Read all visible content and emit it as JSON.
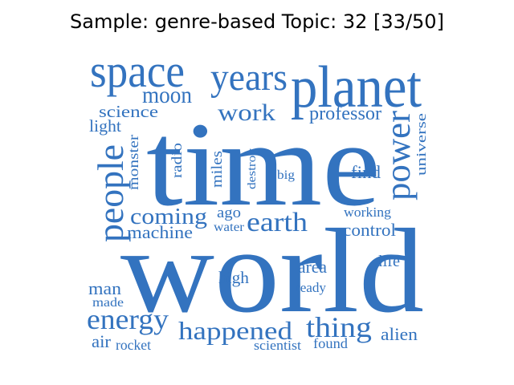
{
  "title": "Sample: genre-based Topic: 32 [33/50]",
  "word_color": "#3373bf",
  "words": [
    {
      "id": "world",
      "text": "world"
    },
    {
      "id": "time",
      "text": "time"
    },
    {
      "id": "planet",
      "text": "planet"
    },
    {
      "id": "space",
      "text": "space"
    },
    {
      "id": "years",
      "text": "years"
    },
    {
      "id": "people",
      "text": "people"
    },
    {
      "id": "power",
      "text": "power"
    },
    {
      "id": "earth",
      "text": "earth"
    },
    {
      "id": "energy",
      "text": "energy"
    },
    {
      "id": "happened",
      "text": "happened"
    },
    {
      "id": "thing",
      "text": "thing"
    },
    {
      "id": "moon",
      "text": "moon"
    },
    {
      "id": "work",
      "text": "work"
    },
    {
      "id": "coming",
      "text": "coming"
    },
    {
      "id": "professor",
      "text": "professor"
    },
    {
      "id": "machine",
      "text": "machine"
    },
    {
      "id": "control",
      "text": "control"
    },
    {
      "id": "find",
      "text": "find"
    },
    {
      "id": "science",
      "text": "science"
    },
    {
      "id": "light",
      "text": "light"
    },
    {
      "id": "monster",
      "text": "monster"
    },
    {
      "id": "radio",
      "text": "radio"
    },
    {
      "id": "miles",
      "text": "miles"
    },
    {
      "id": "destroy",
      "text": "destroy"
    },
    {
      "id": "big",
      "text": "big"
    },
    {
      "id": "universe",
      "text": "universe"
    },
    {
      "id": "ago",
      "text": "ago"
    },
    {
      "id": "water",
      "text": "water"
    },
    {
      "id": "working",
      "text": "working"
    },
    {
      "id": "area",
      "text": "area"
    },
    {
      "id": "life",
      "text": "life"
    },
    {
      "id": "high",
      "text": "high"
    },
    {
      "id": "ready",
      "text": "ready"
    },
    {
      "id": "man",
      "text": "man"
    },
    {
      "id": "made",
      "text": "made"
    },
    {
      "id": "air",
      "text": "air"
    },
    {
      "id": "rocket",
      "text": "rocket"
    },
    {
      "id": "scientist",
      "text": "scientist"
    },
    {
      "id": "found",
      "text": "found"
    },
    {
      "id": "alien",
      "text": "alien"
    }
  ]
}
